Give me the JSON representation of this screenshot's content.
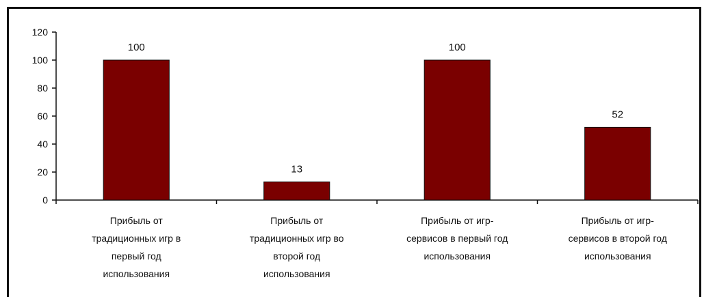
{
  "chart_data": {
    "type": "bar",
    "categories": [
      [
        "Прибыль от",
        "традиционных игр в",
        "первый год",
        "использования"
      ],
      [
        "Прибыль от",
        "традиционных игр во",
        "второй год",
        "использования"
      ],
      [
        "Прибыль от игр-",
        "сервисов в первый год",
        "использования"
      ],
      [
        "Прибыль от игр-",
        "сервисов в второй год",
        "использования"
      ]
    ],
    "values": [
      100,
      13,
      100,
      52
    ],
    "data_labels": [
      "100",
      "13",
      "100",
      "52"
    ],
    "yticks": [
      "0",
      "20",
      "40",
      "60",
      "80",
      "100",
      "120"
    ],
    "ylim": [
      0,
      120
    ],
    "title": "",
    "xlabel": "",
    "ylabel": "",
    "bar_color": "#7a0000",
    "grid": false,
    "legend": "none"
  }
}
